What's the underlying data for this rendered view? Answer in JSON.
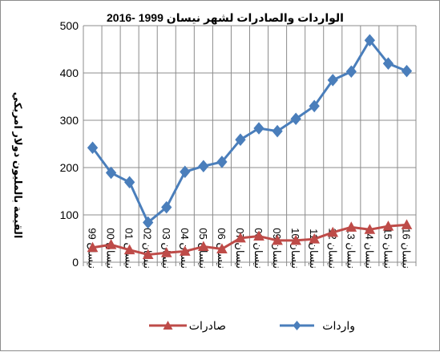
{
  "chart_data": {
    "type": "line",
    "title": "الواردات والصادرات لشهر نيسان 1999 -2016",
    "xlabel": "",
    "ylabel": "القيمة بالمليون دولار امريكي",
    "categories": [
      "نيسان 99",
      "نيسان 00",
      "نيسان 01",
      "نيسان 02",
      "نيسان 03",
      "نيسان 04",
      "نيسان 05",
      "نيسان 06",
      "نيسان 07",
      "نيسان 08",
      "نيسان 09",
      "نيسان 10",
      "نيسان 11",
      "نيسان 12",
      "نيسان 13",
      "نيسان 14",
      "نيسان 15",
      "نيسان 16"
    ],
    "ylim": [
      0,
      500
    ],
    "yticks": [
      "0",
      "100",
      "200",
      "300",
      "400",
      "500"
    ],
    "grid": true,
    "legend_position": "bottom",
    "series": [
      {
        "name": "واردات",
        "color": "#4a7ebb",
        "marker": "diamond",
        "values": [
          242,
          189,
          169,
          84,
          116,
          191,
          203,
          212,
          259,
          283,
          277,
          303,
          330,
          385,
          403,
          469,
          420,
          404
        ]
      },
      {
        "name": "صادرات",
        "color": "#be4b48",
        "marker": "triangle",
        "values": [
          31,
          37,
          26,
          16,
          20,
          23,
          33,
          28,
          51,
          55,
          46,
          46,
          49,
          63,
          74,
          69,
          76,
          79
        ]
      }
    ]
  }
}
